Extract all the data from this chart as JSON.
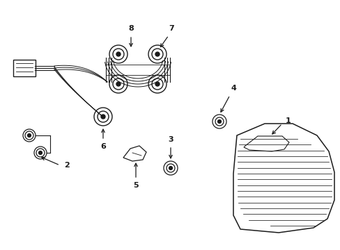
{
  "background_color": "#ffffff",
  "line_color": "#1a1a1a",
  "text_color": "#1a1a1a",
  "fig_width": 4.89,
  "fig_height": 3.6,
  "dpi": 100
}
